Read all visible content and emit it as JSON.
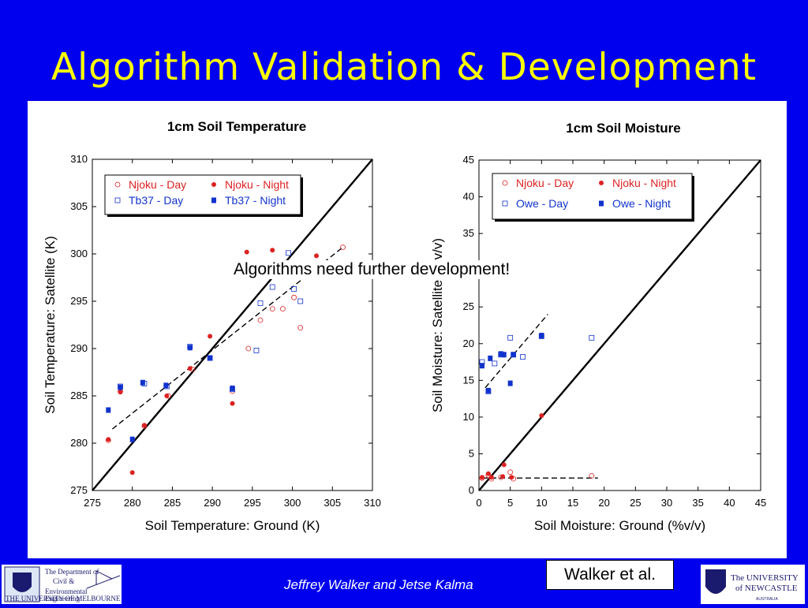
{
  "slide": {
    "title": "Algorithm Validation & Development",
    "note": "Algorithms need further development!",
    "footer_authors": "Jeffrey Walker and Jetse Kalma",
    "citation": "Walker et al.",
    "logos": {
      "left_line1": "The Department of",
      "left_line2": "Civil &",
      "left_line3": "Environmental",
      "left_line4": "Engineering",
      "left_seal": "THE UNIVERSITY OF MELBOURNE",
      "right_line1": "The UNIVERSITY",
      "right_line2": "of NEWCASTLE",
      "right_line3": "AUSTRALIA"
    }
  },
  "colors": {
    "background": "#0000EE",
    "title": "#FFFF00",
    "njoku": "#DD2222",
    "tb37": "#1133CC"
  },
  "chart_data": [
    {
      "type": "scatter",
      "title": "1cm Soil Temperature",
      "xlabel": "Soil Temperature: Ground (K)",
      "ylabel": "Soil Temperature: Satellite (K)",
      "xlim": [
        275,
        310
      ],
      "ylim": [
        275,
        310
      ],
      "xticks": [
        275,
        280,
        285,
        290,
        295,
        300,
        305,
        310
      ],
      "yticks": [
        275,
        280,
        285,
        290,
        295,
        300,
        305,
        310
      ],
      "grid": false,
      "legend": "top-left",
      "series": [
        {
          "name": "Njoku - Day",
          "marker": "open-circle",
          "color": "#DD2222",
          "points": [
            [
              277,
              280.3
            ],
            [
              278.5,
              285.5
            ],
            [
              281.5,
              281.8
            ],
            [
              284.5,
              285
            ],
            [
              287.5,
              287.8
            ],
            [
              292.5,
              285.5
            ],
            [
              294.5,
              290
            ],
            [
              296,
              293
            ],
            [
              297.5,
              294.2
            ],
            [
              298.8,
              294.2
            ],
            [
              300.2,
              295.4
            ],
            [
              301,
              292.2
            ],
            [
              306.3,
              300.7
            ]
          ]
        },
        {
          "name": "Njoku - Night",
          "marker": "filled-circle",
          "color": "#DD2222",
          "points": [
            [
              277,
              280.4
            ],
            [
              278.5,
              285.4
            ],
            [
              280,
              276.9
            ],
            [
              281.5,
              281.9
            ],
            [
              284.3,
              285
            ],
            [
              287.2,
              287.9
            ],
            [
              289.7,
              291.3
            ],
            [
              292.5,
              284.2
            ],
            [
              294.3,
              300.2
            ],
            [
              297.5,
              300.4
            ],
            [
              303,
              299.8
            ]
          ]
        },
        {
          "name": "Tb37 - Day",
          "marker": "open-square",
          "color": "#1133CC",
          "points": [
            [
              278.5,
              286
            ],
            [
              281.5,
              286.3
            ],
            [
              284.3,
              286
            ],
            [
              287.2,
              290.2
            ],
            [
              289.7,
              289
            ],
            [
              292.5,
              285.7
            ],
            [
              295.5,
              289.8
            ],
            [
              296,
              294.8
            ],
            [
              297.5,
              296.5
            ],
            [
              299.5,
              300.1
            ],
            [
              300.2,
              296.3
            ],
            [
              301,
              295
            ]
          ]
        },
        {
          "name": "Tb37 - Night",
          "marker": "filled-square",
          "color": "#1133CC",
          "points": [
            [
              277,
              283.5
            ],
            [
              278.5,
              285.9
            ],
            [
              280,
              280.4
            ],
            [
              281.3,
              286.4
            ],
            [
              284.2,
              286.1
            ],
            [
              287.2,
              290.1
            ],
            [
              289.7,
              289
            ],
            [
              292.5,
              285.8
            ]
          ]
        }
      ],
      "lines": [
        {
          "style": "solid",
          "points": [
            [
              275,
              275
            ],
            [
              310,
              310
            ]
          ]
        },
        {
          "style": "dashed",
          "points": [
            [
              277.5,
              281.5
            ],
            [
              306.3,
              300.7
            ]
          ]
        }
      ]
    },
    {
      "type": "scatter",
      "title": "1cm Soil Moisture",
      "xlabel": "Soil Moisture: Ground (%v/v)",
      "ylabel": "Soil Moisture: Satellite (%v/v)",
      "xlim": [
        0,
        45
      ],
      "ylim": [
        0,
        45
      ],
      "xticks": [
        0,
        5,
        10,
        15,
        20,
        25,
        30,
        35,
        40,
        45
      ],
      "yticks": [
        0,
        5,
        10,
        15,
        20,
        25,
        30,
        35,
        40,
        45
      ],
      "grid": false,
      "legend": "top-left",
      "series": [
        {
          "name": "Njoku - Day",
          "marker": "open-circle",
          "color": "#DD2222",
          "points": [
            [
              0.5,
              1.7
            ],
            [
              1.5,
              2.1
            ],
            [
              2,
              1.6
            ],
            [
              3.5,
              1.8
            ],
            [
              5,
              2.5
            ],
            [
              5.5,
              1.6
            ],
            [
              18,
              2
            ]
          ]
        },
        {
          "name": "Njoku - Night",
          "marker": "filled-circle",
          "color": "#DD2222",
          "points": [
            [
              0.5,
              1.8
            ],
            [
              1.5,
              2.3
            ],
            [
              2,
              1.8
            ],
            [
              3.8,
              1.9
            ],
            [
              4,
              3.5
            ],
            [
              5.2,
              1.8
            ],
            [
              10,
              10.2
            ]
          ]
        },
        {
          "name": "Owe - Day",
          "marker": "open-square",
          "color": "#1133CC",
          "points": [
            [
              0.5,
              17.5
            ],
            [
              1.5,
              13.5
            ],
            [
              2.5,
              17.3
            ],
            [
              3.5,
              18.5
            ],
            [
              5,
              20.8
            ],
            [
              5.5,
              18.5
            ],
            [
              7,
              18.2
            ],
            [
              10,
              21
            ],
            [
              18,
              20.8
            ]
          ]
        },
        {
          "name": "Owe - Night",
          "marker": "filled-square",
          "color": "#1133CC",
          "points": [
            [
              0.5,
              17
            ],
            [
              1.5,
              13.6
            ],
            [
              1.8,
              18
            ],
            [
              3.5,
              18.6
            ],
            [
              4,
              18.5
            ],
            [
              5,
              14.6
            ],
            [
              5.5,
              18.5
            ],
            [
              10,
              21.1
            ]
          ]
        }
      ],
      "lines": [
        {
          "style": "solid",
          "points": [
            [
              0,
              0
            ],
            [
              45,
              45
            ]
          ]
        },
        {
          "style": "dashed",
          "points": [
            [
              1,
              14
            ],
            [
              11,
              24
            ]
          ]
        },
        {
          "style": "dashed",
          "points": [
            [
              0.5,
              1.7
            ],
            [
              19,
              1.7
            ]
          ]
        }
      ]
    }
  ]
}
